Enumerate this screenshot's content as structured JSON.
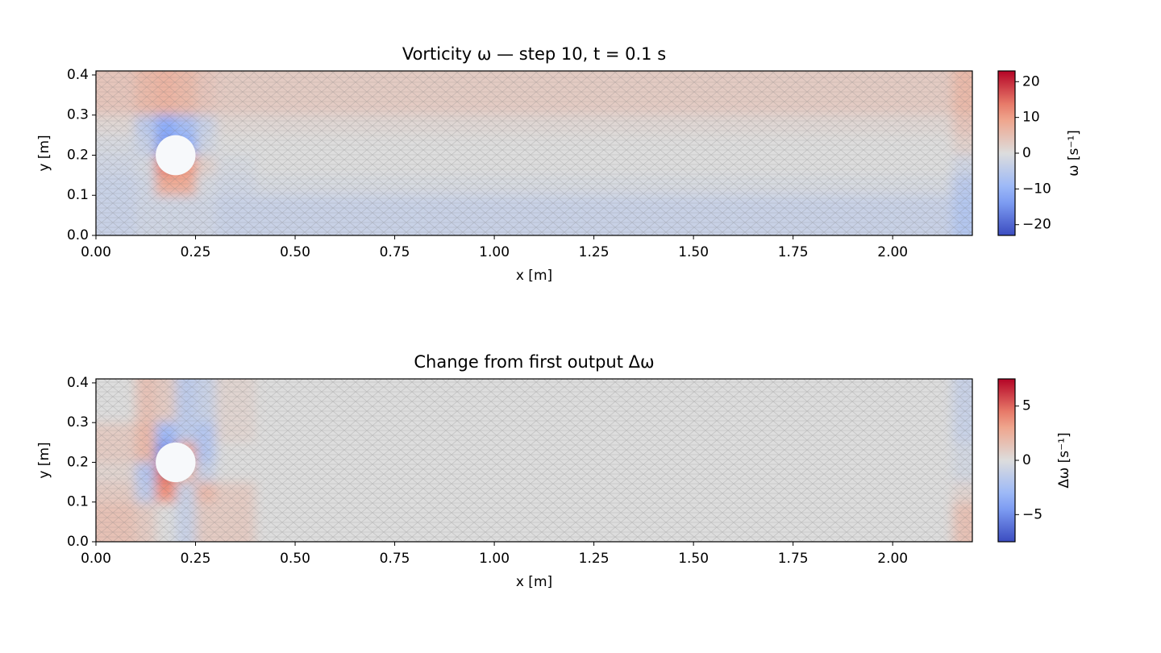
{
  "chart_data": [
    {
      "type": "heatmap",
      "title": "Vorticity ω — step 10, t = 0.1 s",
      "x_label": "x [m]",
      "y_label": "y [m]",
      "colorbar_label": "ω [s⁻¹]",
      "colormap": "coolwarm",
      "x_bins": [
        0,
        0.1,
        0.15,
        0.2,
        0.25,
        0.3,
        0.4,
        0.8,
        1.2,
        1.6,
        2.0,
        2.15,
        2.2
      ],
      "y_bins": [
        0,
        0.1,
        0.15,
        0.2,
        0.25,
        0.3,
        0.41
      ],
      "values": [
        [
          -3,
          -2,
          -2,
          -2,
          -2,
          -3,
          -3,
          -3,
          -3,
          -3,
          -3,
          -6
        ],
        [
          -3,
          -2,
          8,
          8,
          -1,
          -2,
          -1,
          -1,
          -1,
          -1,
          -1,
          -5
        ],
        [
          -2,
          -1,
          14,
          12,
          2,
          -1,
          0,
          0,
          0,
          0,
          0,
          -2
        ],
        [
          -1,
          -3,
          -14,
          -12,
          -2,
          0,
          0,
          0,
          0,
          0,
          0,
          2
        ],
        [
          1,
          -5,
          -12,
          -8,
          -3,
          1,
          1,
          1,
          1,
          1,
          1,
          4
        ],
        [
          4,
          6,
          7,
          6,
          4,
          3,
          3,
          3,
          3,
          3,
          3,
          6
        ]
      ],
      "cylinder": {
        "center": [
          0.2,
          0.2
        ],
        "radius": 0.05
      },
      "xlim": [
        0,
        2.2
      ],
      "ylim": [
        0,
        0.41
      ],
      "xticks": [
        {
          "value": 0,
          "label": "0.00"
        },
        {
          "value": 0.25,
          "label": "0.25"
        },
        {
          "value": 0.5,
          "label": "0.50"
        },
        {
          "value": 0.75,
          "label": "0.75"
        },
        {
          "value": 1,
          "label": "1.00"
        },
        {
          "value": 1.25,
          "label": "1.25"
        },
        {
          "value": 1.5,
          "label": "1.50"
        },
        {
          "value": 1.75,
          "label": "1.75"
        },
        {
          "value": 2,
          "label": "2.00"
        }
      ],
      "yticks": [
        {
          "value": 0,
          "label": "0.0"
        },
        0.1,
        0.2,
        0.3,
        0.4
      ],
      "clim": [
        -23,
        23
      ],
      "cticks": [
        {
          "value": -20,
          "label": "−20"
        },
        {
          "value": -10,
          "label": "−10"
        },
        0,
        10,
        20
      ]
    },
    {
      "type": "heatmap",
      "title": "Change from first output Δω",
      "x_label": "x [m]",
      "y_label": "y [m]",
      "colorbar_label": "Δω [s⁻¹]",
      "colormap": "coolwarm",
      "x_bins": [
        0,
        0.1,
        0.15,
        0.2,
        0.25,
        0.3,
        0.4,
        0.8,
        1.2,
        1.6,
        2.0,
        2.15,
        2.2
      ],
      "y_bins": [
        0,
        0.1,
        0.15,
        0.2,
        0.25,
        0.3,
        0.41
      ],
      "values": [
        [
          1.5,
          1,
          0,
          -1,
          1,
          1,
          0,
          0,
          0,
          0,
          0,
          1.5
        ],
        [
          1,
          -1.5,
          4,
          -1,
          2,
          1,
          0,
          0,
          0,
          0,
          0,
          0.5
        ],
        [
          0.5,
          -2,
          5,
          2,
          -1,
          0,
          0,
          0,
          0,
          0,
          0,
          -0.5
        ],
        [
          1,
          2,
          -5,
          3,
          -2,
          0,
          0,
          0,
          0,
          0,
          0,
          -0.5
        ],
        [
          1,
          2,
          -3,
          -1.5,
          -2,
          0.5,
          0,
          0,
          0,
          0,
          0,
          -1
        ],
        [
          0,
          1.5,
          1,
          -1.5,
          -1,
          0.5,
          0,
          0,
          0,
          0,
          0,
          -1
        ]
      ],
      "cylinder": {
        "center": [
          0.2,
          0.2
        ],
        "radius": 0.05
      },
      "xlim": [
        0,
        2.2
      ],
      "ylim": [
        0,
        0.41
      ],
      "xticks": [
        {
          "value": 0,
          "label": "0.00"
        },
        {
          "value": 0.25,
          "label": "0.25"
        },
        {
          "value": 0.5,
          "label": "0.50"
        },
        {
          "value": 0.75,
          "label": "0.75"
        },
        {
          "value": 1,
          "label": "1.00"
        },
        {
          "value": 1.25,
          "label": "1.25"
        },
        {
          "value": 1.5,
          "label": "1.50"
        },
        {
          "value": 1.75,
          "label": "1.75"
        },
        {
          "value": 2,
          "label": "2.00"
        }
      ],
      "yticks": [
        {
          "value": 0,
          "label": "0.0"
        },
        0.1,
        0.2,
        0.3,
        0.4
      ],
      "clim": [
        -7.5,
        7.5
      ],
      "cticks": [
        {
          "value": -5,
          "label": "−5"
        },
        0,
        5
      ]
    }
  ]
}
